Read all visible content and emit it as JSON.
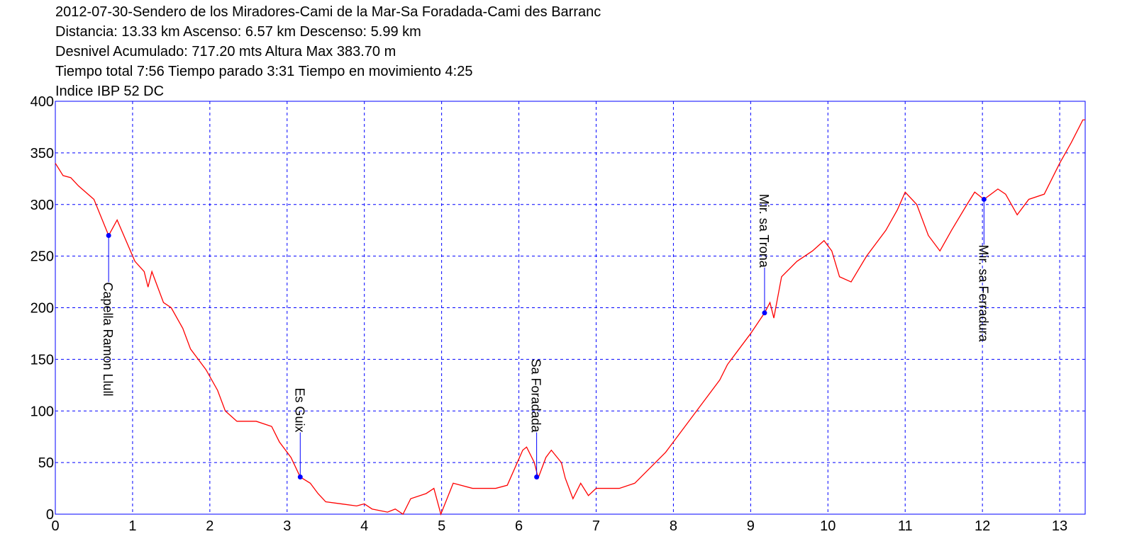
{
  "chart_data": {
    "type": "line",
    "title_lines": [
      "2012-07-30-Sendero de los Miradores-Cami de la Mar-Sa Foradada-Cami des Barranc",
      "Distancia: 13.33 km Ascenso: 6.57 km Descenso: 5.99 km",
      "Desnivel Acumulado: 717.20 mts  Altura Max 383.70 m",
      "Tiempo total 7:56 Tiempo parado 3:31 Tiempo en movimiento 4:25",
      "Indice IBP 52 DC"
    ],
    "x": [
      0,
      0.1,
      0.2,
      0.25,
      0.3,
      0.5,
      0.57,
      0.69,
      0.8,
      1.03,
      1.15,
      1.2,
      1.25,
      1.4,
      1.5,
      1.65,
      1.75,
      1.95,
      2.1,
      2.2,
      2.35,
      2.5,
      2.6,
      2.8,
      2.9,
      3.0,
      3.05,
      3.17,
      3.3,
      3.4,
      3.5,
      3.7,
      3.9,
      4.0,
      4.1,
      4.3,
      4.4,
      4.5,
      4.6,
      4.8,
      4.9,
      4.99,
      5.15,
      5.4,
      5.7,
      5.85,
      5.95,
      6.05,
      6.1,
      6.2,
      6.25,
      6.35,
      6.42,
      6.55,
      6.6,
      6.7,
      6.8,
      6.9,
      7.0,
      7.3,
      7.5,
      7.7,
      7.9,
      8.0,
      8.3,
      8.6,
      8.7,
      8.85,
      9.0,
      9.18,
      9.25,
      9.3,
      9.4,
      9.6,
      9.8,
      9.95,
      10.05,
      10.15,
      10.3,
      10.5,
      10.75,
      10.9,
      11.0,
      11.15,
      11.3,
      11.45,
      11.6,
      11.8,
      11.9,
      12.02,
      12.2,
      12.3,
      12.45,
      12.6,
      12.8,
      13.0,
      13.15,
      13.3,
      13.33
    ],
    "series": [
      {
        "color": "#ff0000",
        "values": [
          340,
          328,
          326,
          322,
          318,
          305,
          292,
          270,
          285,
          245,
          235,
          220,
          235,
          205,
          200,
          180,
          160,
          140,
          120,
          100,
          90,
          90,
          90,
          85,
          70,
          60,
          55,
          36,
          30,
          20,
          12,
          10,
          8,
          10,
          5,
          2,
          5,
          0,
          15,
          20,
          25,
          0,
          30,
          25,
          25,
          28,
          45,
          62,
          65,
          50,
          35,
          55,
          62,
          50,
          35,
          15,
          30,
          18,
          25,
          25,
          30,
          45,
          60,
          70,
          100,
          130,
          145,
          160,
          175,
          195,
          205,
          190,
          230,
          245,
          255,
          265,
          255,
          230,
          225,
          250,
          275,
          295,
          312,
          300,
          270,
          255,
          275,
          300,
          312,
          305,
          315,
          310,
          290,
          305,
          310,
          340,
          360,
          382,
          382
        ]
      }
    ],
    "annotations": [
      {
        "label": "Capella Ramon Llull",
        "x": 0.69,
        "y": 270
      },
      {
        "label": "Es Guix",
        "x": 3.17,
        "y": 36
      },
      {
        "label": "Sa Foradada",
        "x": 6.23,
        "y": 36
      },
      {
        "label": "Mir. sa Trona",
        "x": 9.18,
        "y": 195
      },
      {
        "label": "Mir. sa Ferradura",
        "x": 12.02,
        "y": 305
      }
    ],
    "xlim": [
      0,
      13.33
    ],
    "xticks": [
      0,
      1,
      2,
      3,
      4,
      5,
      6,
      7,
      8,
      9,
      10,
      11,
      12,
      13
    ],
    "ylim": [
      0,
      400
    ],
    "yticks": [
      0,
      50,
      100,
      150,
      200,
      250,
      300,
      350,
      400
    ],
    "grid": true,
    "grid_color": "#0000ff",
    "marker_color": "#0000ff"
  }
}
